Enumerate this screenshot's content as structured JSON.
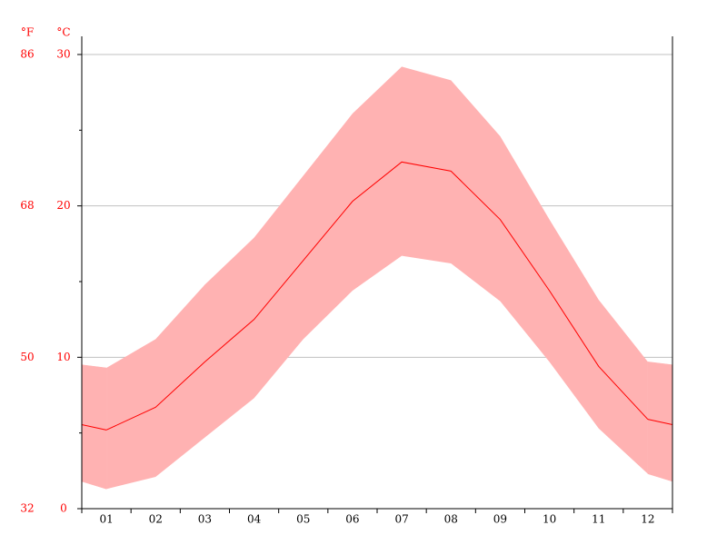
{
  "chart_data": {
    "type": "band-line",
    "categories": [
      "01",
      "02",
      "03",
      "04",
      "05",
      "06",
      "07",
      "08",
      "09",
      "10",
      "11",
      "12"
    ],
    "band": {
      "color": "#ffb2b2",
      "high": [
        9.3,
        11.2,
        14.8,
        17.9,
        22.0,
        26.1,
        29.2,
        28.3,
        24.6,
        19.1,
        13.8,
        9.7
      ],
      "low": [
        1.3,
        2.1,
        4.7,
        7.3,
        11.2,
        14.4,
        16.7,
        16.2,
        13.7,
        9.7,
        5.3,
        2.3
      ]
    },
    "line": {
      "color": "#ff0000",
      "values": [
        5.2,
        6.7,
        9.7,
        12.5,
        16.4,
        20.3,
        22.9,
        22.3,
        19.1,
        14.4,
        9.4,
        5.9
      ]
    },
    "y_unit": "°C",
    "y2_unit": "°F",
    "ylim": [
      0,
      30
    ],
    "yticks": [
      0,
      10,
      20,
      30
    ],
    "yminor_ticks": [
      5,
      15,
      25
    ],
    "y2lim": [
      32,
      86
    ],
    "y2ticks": [
      32,
      50,
      68,
      86
    ],
    "axis_label_color": "#ff0000",
    "grid": true
  }
}
